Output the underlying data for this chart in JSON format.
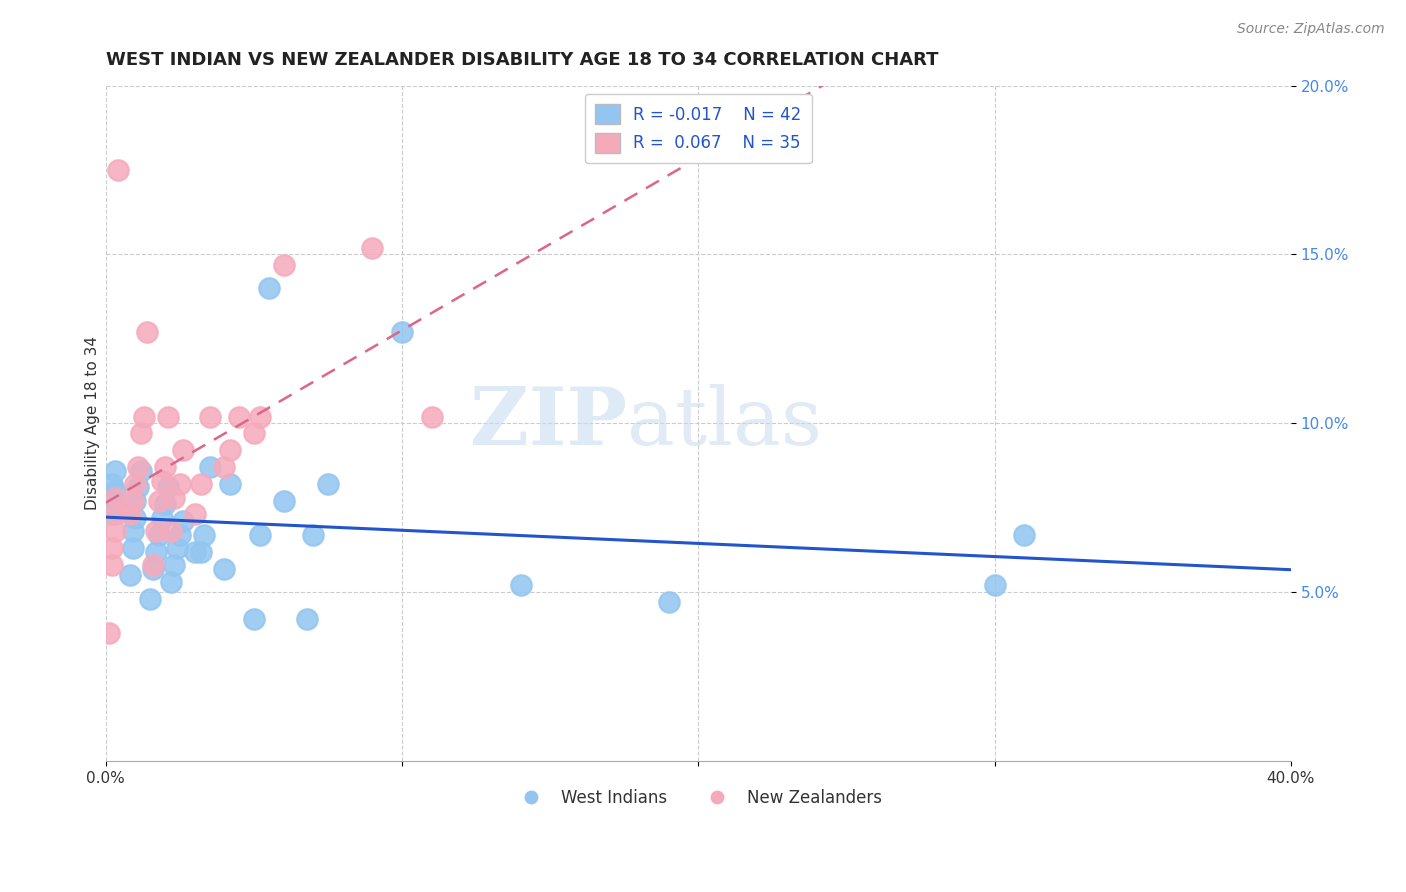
{
  "title": "WEST INDIAN VS NEW ZEALANDER DISABILITY AGE 18 TO 34 CORRELATION CHART",
  "source_text": "Source: ZipAtlas.com",
  "ylabel": "Disability Age 18 to 34",
  "xlim": [
    0.0,
    0.4
  ],
  "ylim": [
    0.0,
    0.2
  ],
  "xticks": [
    0.0,
    0.1,
    0.2,
    0.3,
    0.4
  ],
  "xticklabels": [
    "0.0%",
    "",
    "",
    "",
    "40.0%"
  ],
  "yticks": [
    0.05,
    0.1,
    0.15,
    0.2
  ],
  "yticklabels": [
    "5.0%",
    "10.0%",
    "15.0%",
    "20.0%"
  ],
  "legend_r_blue": "-0.017",
  "legend_n_blue": "42",
  "legend_r_pink": "0.067",
  "legend_n_pink": "35",
  "blue_color": "#92C5F0",
  "pink_color": "#F5AABB",
  "blue_line_color": "#2255CC",
  "pink_line_color": "#DD6688",
  "legend_text_color": "#2255CC",
  "ytick_color": "#4488EE",
  "watermark_zip": "ZIP",
  "watermark_atlas": "atlas",
  "background_color": "#FFFFFF",
  "grid_color": "#CCCCCC",
  "title_fontsize": 13,
  "axis_label_fontsize": 11,
  "tick_fontsize": 11,
  "legend_fontsize": 12,
  "blue_scatter_x": [
    0.002,
    0.002,
    0.002,
    0.003,
    0.003,
    0.008,
    0.009,
    0.009,
    0.01,
    0.01,
    0.011,
    0.012,
    0.015,
    0.016,
    0.017,
    0.018,
    0.019,
    0.02,
    0.021,
    0.022,
    0.023,
    0.024,
    0.025,
    0.026,
    0.03,
    0.032,
    0.033,
    0.035,
    0.04,
    0.042,
    0.05,
    0.052,
    0.055,
    0.06,
    0.068,
    0.07,
    0.075,
    0.1,
    0.14,
    0.19,
    0.3,
    0.31
  ],
  "blue_scatter_y": [
    0.073,
    0.078,
    0.082,
    0.08,
    0.086,
    0.055,
    0.063,
    0.068,
    0.072,
    0.077,
    0.081,
    0.086,
    0.048,
    0.057,
    0.062,
    0.067,
    0.072,
    0.076,
    0.081,
    0.053,
    0.058,
    0.063,
    0.067,
    0.071,
    0.062,
    0.062,
    0.067,
    0.087,
    0.057,
    0.082,
    0.042,
    0.067,
    0.14,
    0.077,
    0.042,
    0.067,
    0.082,
    0.127,
    0.052,
    0.047,
    0.052,
    0.067
  ],
  "pink_scatter_x": [
    0.001,
    0.002,
    0.002,
    0.003,
    0.003,
    0.003,
    0.004,
    0.008,
    0.009,
    0.01,
    0.011,
    0.012,
    0.013,
    0.014,
    0.016,
    0.017,
    0.018,
    0.019,
    0.02,
    0.021,
    0.022,
    0.023,
    0.025,
    0.026,
    0.03,
    0.032,
    0.035,
    0.04,
    0.042,
    0.045,
    0.05,
    0.052,
    0.06,
    0.09,
    0.11
  ],
  "pink_scatter_y": [
    0.038,
    0.058,
    0.063,
    0.068,
    0.073,
    0.078,
    0.175,
    0.073,
    0.077,
    0.082,
    0.087,
    0.097,
    0.102,
    0.127,
    0.058,
    0.068,
    0.077,
    0.083,
    0.087,
    0.102,
    0.068,
    0.078,
    0.082,
    0.092,
    0.073,
    0.082,
    0.102,
    0.087,
    0.092,
    0.102,
    0.097,
    0.102,
    0.147,
    0.152,
    0.102
  ]
}
